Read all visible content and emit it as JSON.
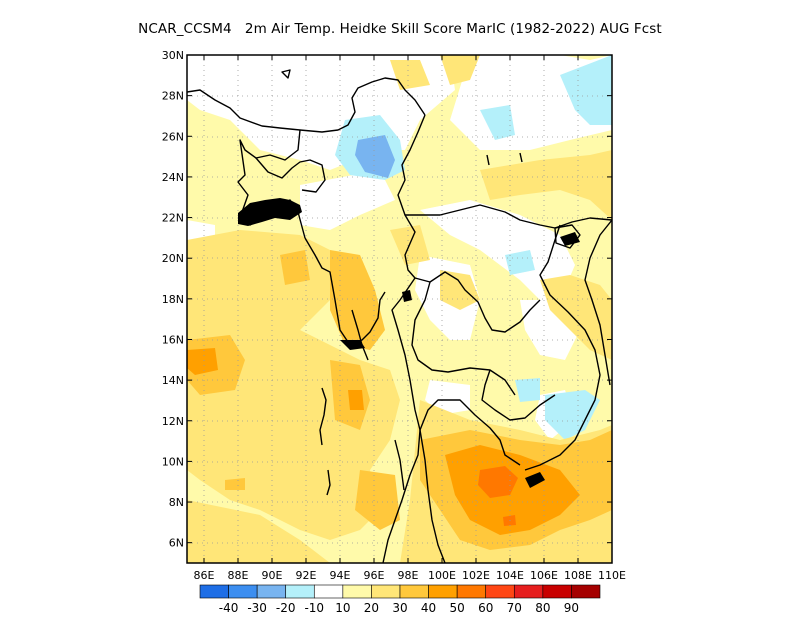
{
  "title": "NCAR_CCSM4   2m Air Temp. Heidke Skill Score MarIC (1982-2022) AUG Fcst",
  "map": {
    "lat_range": [
      5,
      30
    ],
    "lon_range": [
      85,
      110
    ],
    "lat_ticks": [
      "30N",
      "28N",
      "26N",
      "24N",
      "22N",
      "20N",
      "18N",
      "16N",
      "14N",
      "12N",
      "10N",
      "8N",
      "6N"
    ],
    "lon_ticks": [
      "86E",
      "88E",
      "90E",
      "92E",
      "94E",
      "96E",
      "98E",
      "100E",
      "102E",
      "104E",
      "106E",
      "108E",
      "110E"
    ],
    "grid": "dotted",
    "frame_color": "#000000",
    "coast_color": "#000000"
  },
  "colorbar": {
    "colors": [
      "#1e6ee6",
      "#3c8ef0",
      "#78b4f0",
      "#b4f0fa",
      "#ffffff",
      "#fffaaa",
      "#ffe678",
      "#ffc83c",
      "#ffa000",
      "#ff7800",
      "#ff4614",
      "#e61e1e",
      "#c80000",
      "#a50000"
    ],
    "labels": [
      "-40",
      "-30",
      "-20",
      "-10",
      "10",
      "20",
      "30",
      "40",
      "50",
      "60",
      "70",
      "80",
      "90"
    ]
  }
}
